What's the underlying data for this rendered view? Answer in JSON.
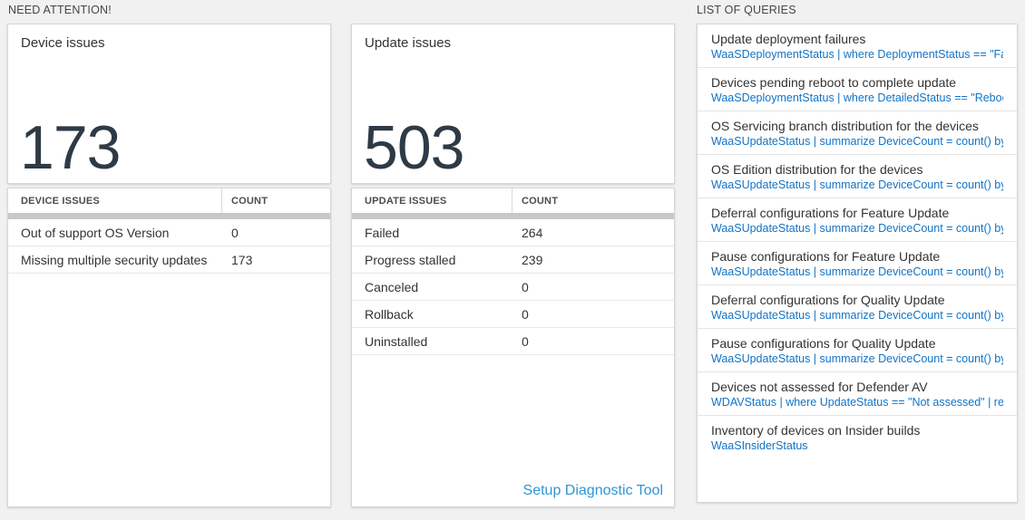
{
  "section_headers": {
    "need_attention": "NEED ATTENTION!",
    "list_of_queries": "LIST OF QUERIES"
  },
  "device_issues": {
    "card_title": "Device issues",
    "card_value": "173",
    "table": {
      "col_issue": "DEVICE ISSUES",
      "col_count": "COUNT",
      "rows": [
        {
          "label": "Out of support OS Version",
          "count": "0"
        },
        {
          "label": "Missing multiple security updates",
          "count": "173"
        }
      ]
    }
  },
  "update_issues": {
    "card_title": "Update issues",
    "card_value": "503",
    "table": {
      "col_issue": "UPDATE ISSUES",
      "col_count": "COUNT",
      "rows": [
        {
          "label": "Failed",
          "count": "264"
        },
        {
          "label": "Progress stalled",
          "count": "239"
        },
        {
          "label": "Canceled",
          "count": "0"
        },
        {
          "label": "Rollback",
          "count": "0"
        },
        {
          "label": "Uninstalled",
          "count": "0"
        }
      ]
    },
    "footer_link": "Setup Diagnostic Tool"
  },
  "queries": [
    {
      "title": "Update deployment failures",
      "query": "WaaSDeploymentStatus | where DeploymentStatus == \"Failed\" |..."
    },
    {
      "title": "Devices pending reboot to complete update",
      "query": "WaaSDeploymentStatus | where DetailedStatus == \"Reboot pend..."
    },
    {
      "title": "OS Servicing branch distribution for the devices",
      "query": "WaaSUpdateStatus | summarize DeviceCount = count() by OSSer..."
    },
    {
      "title": "OS Edition distribution for the devices",
      "query": "WaaSUpdateStatus | summarize DeviceCount = count() by OSEdit..."
    },
    {
      "title": "Deferral configurations for Feature Update",
      "query": "WaaSUpdateStatus | summarize DeviceCount = count() by Featur..."
    },
    {
      "title": "Pause configurations for Feature Update",
      "query": "WaaSUpdateStatus | summarize DeviceCount = count() by Featur..."
    },
    {
      "title": "Deferral configurations for Quality Update",
      "query": "WaaSUpdateStatus | summarize DeviceCount = count() by Qualit..."
    },
    {
      "title": "Pause configurations for Quality Update",
      "query": "WaaSUpdateStatus | summarize DeviceCount = count() by Qualit..."
    },
    {
      "title": "Devices not assessed for Defender AV",
      "query": "WDAVStatus | where UpdateStatus == \"Not assessed\" | render ta..."
    },
    {
      "title": "Inventory of devices on Insider builds",
      "query": "WaaSInsiderStatus"
    }
  ],
  "colors": {
    "page_background": "#f1f1f1",
    "big_number": "#2e3a45",
    "query_link_blue": "#1173c6",
    "action_link_blue": "#2e95d3"
  }
}
